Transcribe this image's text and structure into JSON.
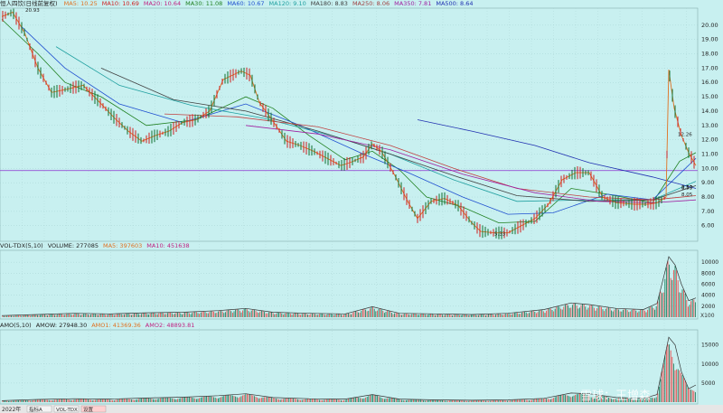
{
  "price_panel": {
    "title": "恒人四饮(日线前复权)",
    "ma": [
      {
        "label": "MA5: 10.25",
        "color": "#e07020"
      },
      {
        "label": "MA10: 10.69",
        "color": "#d02020"
      },
      {
        "label": "MA20: 10.64",
        "color": "#c02080"
      },
      {
        "label": "MA30: 11.08",
        "color": "#208020"
      },
      {
        "label": "MA60: 10.67",
        "color": "#2050d0"
      },
      {
        "label": "MA120: 9.10",
        "color": "#20a0a0"
      },
      {
        "label": "MA180: 8.83",
        "color": "#404040"
      },
      {
        "label": "MA250: 8.06",
        "color": "#a04040"
      },
      {
        "label": "MA350: 7.81",
        "color": "#a020a0"
      },
      {
        "label": "MA500: 8.64",
        "color": "#2030b0"
      }
    ]
  },
  "volume_panel": {
    "labels": [
      {
        "label": "VOL-TDX(5,10)",
        "color": "#222222"
      },
      {
        "label": "VOLUME: 277085",
        "color": "#222222"
      },
      {
        "label": "MA5: 397603",
        "color": "#e07020"
      },
      {
        "label": "MA10: 451638",
        "color": "#c02080"
      }
    ],
    "x_marker": "X100"
  },
  "amount_panel": {
    "labels": [
      {
        "label": "AMO(5,10)",
        "color": "#222222"
      },
      {
        "label": "AMOW: 27948.30",
        "color": "#222222"
      },
      {
        "label": "AMO1: 41369.36",
        "color": "#e07020"
      },
      {
        "label": "AMO2: 48893.81",
        "color": "#c02080"
      }
    ]
  },
  "bottom_bar": {
    "year_label": "2022年",
    "tabs": [
      "指标A",
      "VOL-TDX",
      "设置"
    ]
  },
  "watermark": "雪球：王增森",
  "chart_data": {
    "type": "line",
    "price": {
      "y_ticks": [
        6,
        7,
        8,
        9,
        10,
        11,
        12,
        13,
        14,
        15,
        16,
        17,
        18,
        19,
        20
      ],
      "ylim": [
        5.1,
        21.0
      ],
      "x_index_range": [
        0,
        740
      ],
      "close_series": [
        [
          0,
          20.6
        ],
        [
          12,
          20.9
        ],
        [
          25,
          19.5
        ],
        [
          40,
          17.0
        ],
        [
          55,
          15.3
        ],
        [
          70,
          15.5
        ],
        [
          90,
          15.8
        ],
        [
          110,
          14.5
        ],
        [
          125,
          13.5
        ],
        [
          140,
          12.6
        ],
        [
          155,
          11.9
        ],
        [
          170,
          12.3
        ],
        [
          185,
          12.6
        ],
        [
          200,
          13.2
        ],
        [
          215,
          13.4
        ],
        [
          230,
          14.0
        ],
        [
          245,
          16.2
        ],
        [
          265,
          16.8
        ],
        [
          275,
          16.5
        ],
        [
          285,
          14.6
        ],
        [
          300,
          13.3
        ],
        [
          315,
          11.9
        ],
        [
          330,
          11.6
        ],
        [
          345,
          11.2
        ],
        [
          360,
          10.7
        ],
        [
          375,
          10.2
        ],
        [
          385,
          10.4
        ],
        [
          400,
          10.8
        ],
        [
          410,
          11.7
        ],
        [
          420,
          11.2
        ],
        [
          435,
          9.5
        ],
        [
          450,
          7.6
        ],
        [
          460,
          6.5
        ],
        [
          475,
          7.7
        ],
        [
          490,
          7.9
        ],
        [
          505,
          7.4
        ],
        [
          520,
          6.2
        ],
        [
          530,
          5.6
        ],
        [
          545,
          5.5
        ],
        [
          560,
          5.5
        ],
        [
          575,
          6.0
        ],
        [
          590,
          6.5
        ],
        [
          605,
          7.5
        ],
        [
          620,
          9.2
        ],
        [
          635,
          9.7
        ],
        [
          650,
          9.7
        ],
        [
          665,
          8.0
        ],
        [
          680,
          7.6
        ],
        [
          700,
          7.5
        ],
        [
          715,
          7.5
        ],
        [
          725,
          7.6
        ],
        [
          735,
          8.0
        ],
        [
          738,
          16.9
        ],
        [
          744,
          14.2
        ],
        [
          752,
          12.3
        ],
        [
          760,
          11.1
        ],
        [
          768,
          10.2
        ]
      ],
      "ma_series": {
        "MA30": [
          [
            0,
            20.4
          ],
          [
            40,
            18.0
          ],
          [
            70,
            16.0
          ],
          [
            110,
            15.0
          ],
          [
            160,
            13.0
          ],
          [
            215,
            13.4
          ],
          [
            270,
            15.0
          ],
          [
            300,
            14.2
          ],
          [
            340,
            12.3
          ],
          [
            380,
            10.6
          ],
          [
            410,
            11.2
          ],
          [
            440,
            9.9
          ],
          [
            470,
            8.0
          ],
          [
            510,
            7.3
          ],
          [
            550,
            6.2
          ],
          [
            590,
            6.3
          ],
          [
            630,
            8.6
          ],
          [
            670,
            8.2
          ],
          [
            720,
            7.6
          ],
          [
            750,
            10.5
          ],
          [
            768,
            11.1
          ]
        ],
        "MA60": [
          [
            20,
            20.0
          ],
          [
            70,
            17.0
          ],
          [
            130,
            14.5
          ],
          [
            200,
            13.2
          ],
          [
            270,
            14.5
          ],
          [
            330,
            13.0
          ],
          [
            400,
            11.0
          ],
          [
            450,
            9.7
          ],
          [
            510,
            8.0
          ],
          [
            560,
            6.8
          ],
          [
            610,
            6.9
          ],
          [
            670,
            8.2
          ],
          [
            720,
            7.8
          ],
          [
            768,
            10.7
          ]
        ],
        "MA120": [
          [
            60,
            18.5
          ],
          [
            130,
            15.8
          ],
          [
            210,
            14.4
          ],
          [
            290,
            13.5
          ],
          [
            370,
            12.2
          ],
          [
            430,
            11.0
          ],
          [
            500,
            9.2
          ],
          [
            570,
            7.7
          ],
          [
            650,
            7.8
          ],
          [
            720,
            7.8
          ],
          [
            768,
            9.1
          ]
        ],
        "MA180": [
          [
            110,
            17.0
          ],
          [
            190,
            14.8
          ],
          [
            270,
            14.0
          ],
          [
            350,
            12.6
          ],
          [
            430,
            11.0
          ],
          [
            500,
            9.5
          ],
          [
            570,
            8.1
          ],
          [
            650,
            7.7
          ],
          [
            720,
            7.8
          ],
          [
            768,
            8.8
          ]
        ],
        "MA250": [
          [
            180,
            13.8
          ],
          [
            260,
            13.6
          ],
          [
            350,
            12.9
          ],
          [
            430,
            11.6
          ],
          [
            500,
            10.0
          ],
          [
            570,
            8.6
          ],
          [
            650,
            8.0
          ],
          [
            720,
            7.8
          ],
          [
            768,
            8.1
          ]
        ],
        "MA350": [
          [
            270,
            13.0
          ],
          [
            350,
            12.4
          ],
          [
            430,
            11.3
          ],
          [
            510,
            9.6
          ],
          [
            590,
            8.3
          ],
          [
            660,
            7.7
          ],
          [
            720,
            7.6
          ],
          [
            768,
            7.8
          ]
        ],
        "MA500": [
          [
            460,
            13.4
          ],
          [
            520,
            12.6
          ],
          [
            590,
            11.6
          ],
          [
            650,
            10.4
          ],
          [
            720,
            9.4
          ],
          [
            768,
            8.6
          ]
        ]
      },
      "horizontal_line": 9.85,
      "annotations": [
        {
          "x": 26,
          "y": 20.93,
          "text": "20.93"
        },
        {
          "x": 545,
          "y": 5.33,
          "text": "5.33"
        },
        {
          "x": 748,
          "y": 12.26,
          "text": "12.26"
        },
        {
          "x": 752,
          "y": 8.53,
          "text": "8.53"
        },
        {
          "x": 752,
          "y": 8.57,
          "text": "8.57"
        },
        {
          "x": 752,
          "y": 8.05,
          "text": "8.05"
        }
      ]
    },
    "volume": {
      "y_ticks": [
        2000,
        4000,
        6000,
        8000,
        10000
      ],
      "ylim": [
        0,
        11500
      ],
      "series": [
        [
          0,
          300
        ],
        [
          40,
          500
        ],
        [
          80,
          700
        ],
        [
          120,
          600
        ],
        [
          160,
          800
        ],
        [
          200,
          900
        ],
        [
          240,
          1200
        ],
        [
          270,
          1600
        ],
        [
          300,
          900
        ],
        [
          340,
          700
        ],
        [
          380,
          600
        ],
        [
          410,
          1900
        ],
        [
          440,
          700
        ],
        [
          480,
          600
        ],
        [
          520,
          500
        ],
        [
          560,
          700
        ],
        [
          600,
          1400
        ],
        [
          630,
          2600
        ],
        [
          650,
          2300
        ],
        [
          680,
          1600
        ],
        [
          710,
          1400
        ],
        [
          725,
          2500
        ],
        [
          738,
          11000
        ],
        [
          745,
          9500
        ],
        [
          752,
          6000
        ],
        [
          760,
          3000
        ],
        [
          768,
          3500
        ]
      ]
    },
    "amount": {
      "y_ticks": [
        5000,
        10000,
        15000
      ],
      "ylim": [
        0,
        18000
      ],
      "series": [
        [
          0,
          400
        ],
        [
          40,
          700
        ],
        [
          80,
          900
        ],
        [
          120,
          800
        ],
        [
          160,
          1100
        ],
        [
          200,
          1300
        ],
        [
          240,
          1700
        ],
        [
          270,
          2200
        ],
        [
          300,
          1200
        ],
        [
          340,
          900
        ],
        [
          380,
          800
        ],
        [
          410,
          2000
        ],
        [
          440,
          800
        ],
        [
          480,
          600
        ],
        [
          520,
          500
        ],
        [
          560,
          600
        ],
        [
          600,
          1000
        ],
        [
          630,
          2400
        ],
        [
          650,
          2200
        ],
        [
          680,
          1200
        ],
        [
          710,
          1000
        ],
        [
          725,
          2000
        ],
        [
          738,
          17000
        ],
        [
          745,
          15000
        ],
        [
          752,
          8000
        ],
        [
          760,
          3500
        ],
        [
          768,
          4500
        ]
      ]
    }
  }
}
